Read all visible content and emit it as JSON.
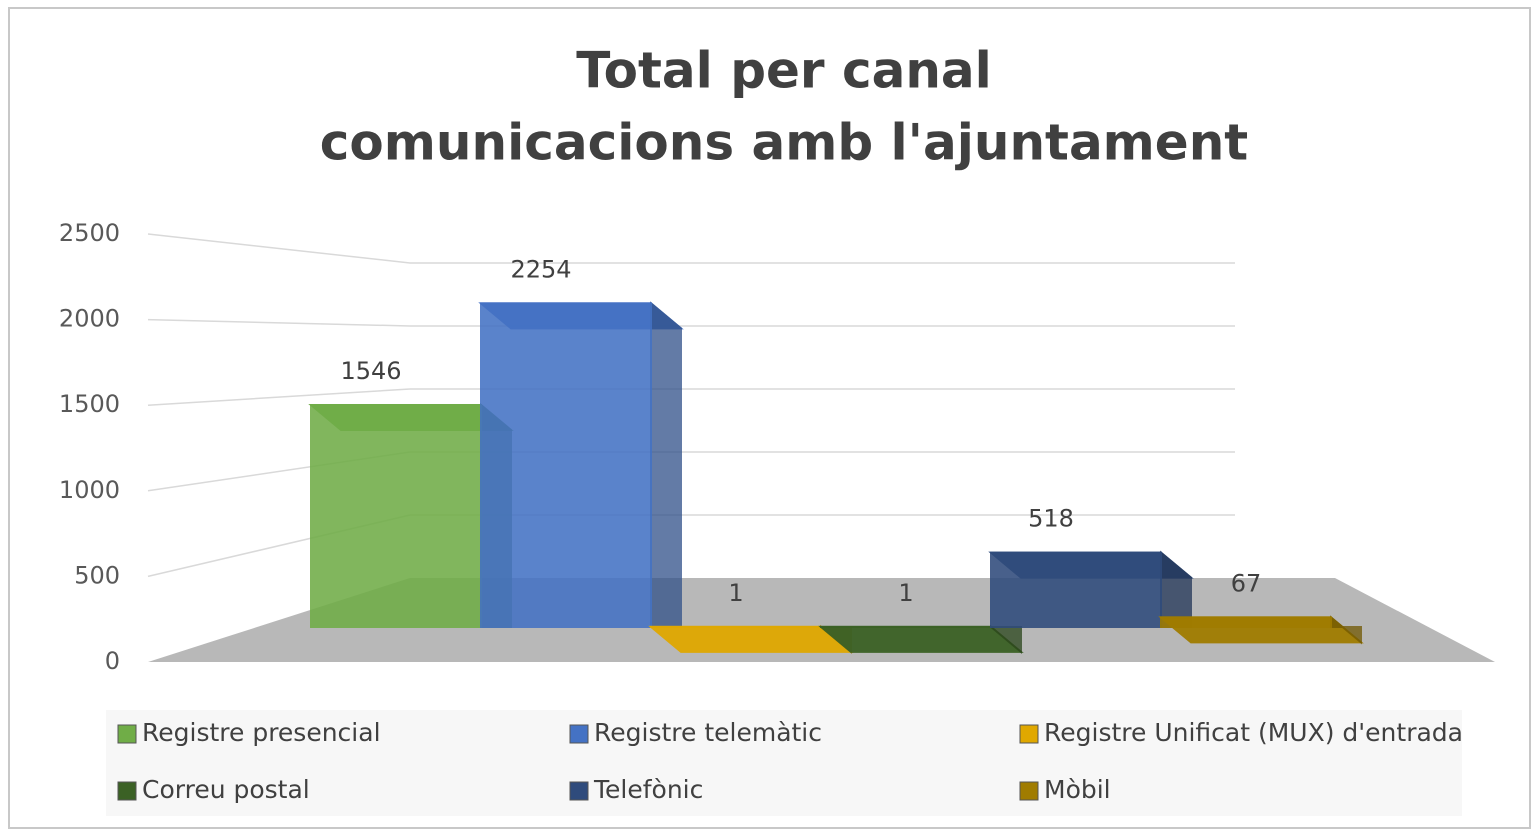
{
  "chart_data": {
    "type": "bar3d",
    "title": [
      "Total per canal",
      "comunicacions amb l'ajuntament"
    ],
    "series": [
      {
        "name": "Registre presencial",
        "color": "#70ad47",
        "values": [
          1546
        ]
      },
      {
        "name": "Registre telemàtic",
        "color": "#4472c4",
        "values": [
          2254
        ]
      },
      {
        "name": "Registre Unificat (MUX) d'entrada",
        "color": "#e0a800",
        "values": [
          1
        ]
      },
      {
        "name": "Correu postal",
        "color": "#3b6125",
        "values": [
          1
        ]
      },
      {
        "name": "Telefònic",
        "color": "#2f4b7c",
        "values": [
          518
        ]
      },
      {
        "name": "Mòbil",
        "color": "#a07c00",
        "values": [
          67
        ]
      }
    ],
    "ylim": [
      0,
      2500
    ],
    "yticks": [
      0,
      500,
      1000,
      1500,
      2000,
      2500
    ],
    "grid": true,
    "legend": "bottom"
  }
}
